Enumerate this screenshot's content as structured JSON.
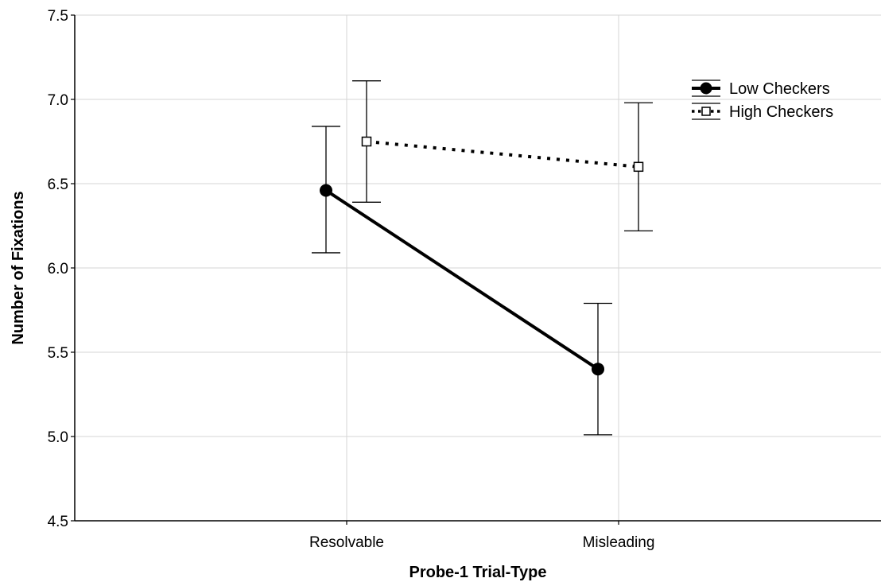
{
  "chart_data": {
    "type": "line",
    "title": "",
    "xlabel": "Probe-1 Trial-Type",
    "ylabel": "Number of Fixations",
    "categories": [
      "Resolvable",
      "Misleading"
    ],
    "ylim": [
      4.5,
      7.5
    ],
    "yticks": [
      "4.5",
      "5.0",
      "5.5",
      "6.0",
      "6.5",
      "7.0",
      "7.5"
    ],
    "grid": true,
    "legend_position": "top-right",
    "series": [
      {
        "name": "Low Checkers",
        "values": [
          6.46,
          5.4
        ],
        "error_low": [
          6.09,
          5.01
        ],
        "error_high": [
          6.84,
          5.79
        ],
        "marker": "filled-circle",
        "line_style": "solid",
        "color": "#000000"
      },
      {
        "name": "High Checkers",
        "values": [
          6.75,
          6.6
        ],
        "error_low": [
          6.39,
          6.22
        ],
        "error_high": [
          7.11,
          6.98
        ],
        "marker": "open-square",
        "line_style": "dotted",
        "color": "#000000"
      }
    ]
  }
}
